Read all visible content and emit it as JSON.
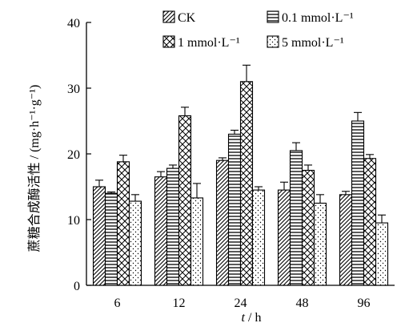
{
  "chart_data": {
    "type": "bar",
    "xlabel": "t / h",
    "xlabel_italic": "t",
    "xlabel_unit": "/ h",
    "ylabel": "蔗糖合成酶活性 / (mg·h⁻¹·g⁻¹)",
    "ylim": [
      0,
      40
    ],
    "yticks": [
      0,
      10,
      20,
      30,
      40
    ],
    "categories": [
      "6",
      "12",
      "24",
      "48",
      "96"
    ],
    "legend_position": "top",
    "series": [
      {
        "name": "CK",
        "pattern": "diagonal",
        "values": [
          15.0,
          16.5,
          19.0,
          14.5,
          13.8
        ],
        "errors": [
          1.0,
          0.8,
          0.4,
          1.2,
          0.5
        ]
      },
      {
        "name": "0.1 mmol·L⁻¹",
        "pattern": "horizontal",
        "values": [
          14.0,
          17.8,
          23.0,
          20.5,
          25.0
        ],
        "errors": [
          0.2,
          0.5,
          0.6,
          1.2,
          1.3
        ]
      },
      {
        "name": "1 mmol·L⁻¹",
        "pattern": "crosshatch",
        "values": [
          18.8,
          25.8,
          31.0,
          17.5,
          19.3
        ],
        "errors": [
          1.0,
          1.3,
          2.5,
          0.8,
          0.6
        ]
      },
      {
        "name": "5 mmol·L⁻¹",
        "pattern": "dots",
        "values": [
          12.8,
          13.3,
          14.5,
          12.5,
          9.5
        ],
        "errors": [
          1.0,
          2.2,
          0.5,
          1.3,
          1.2
        ]
      }
    ]
  }
}
